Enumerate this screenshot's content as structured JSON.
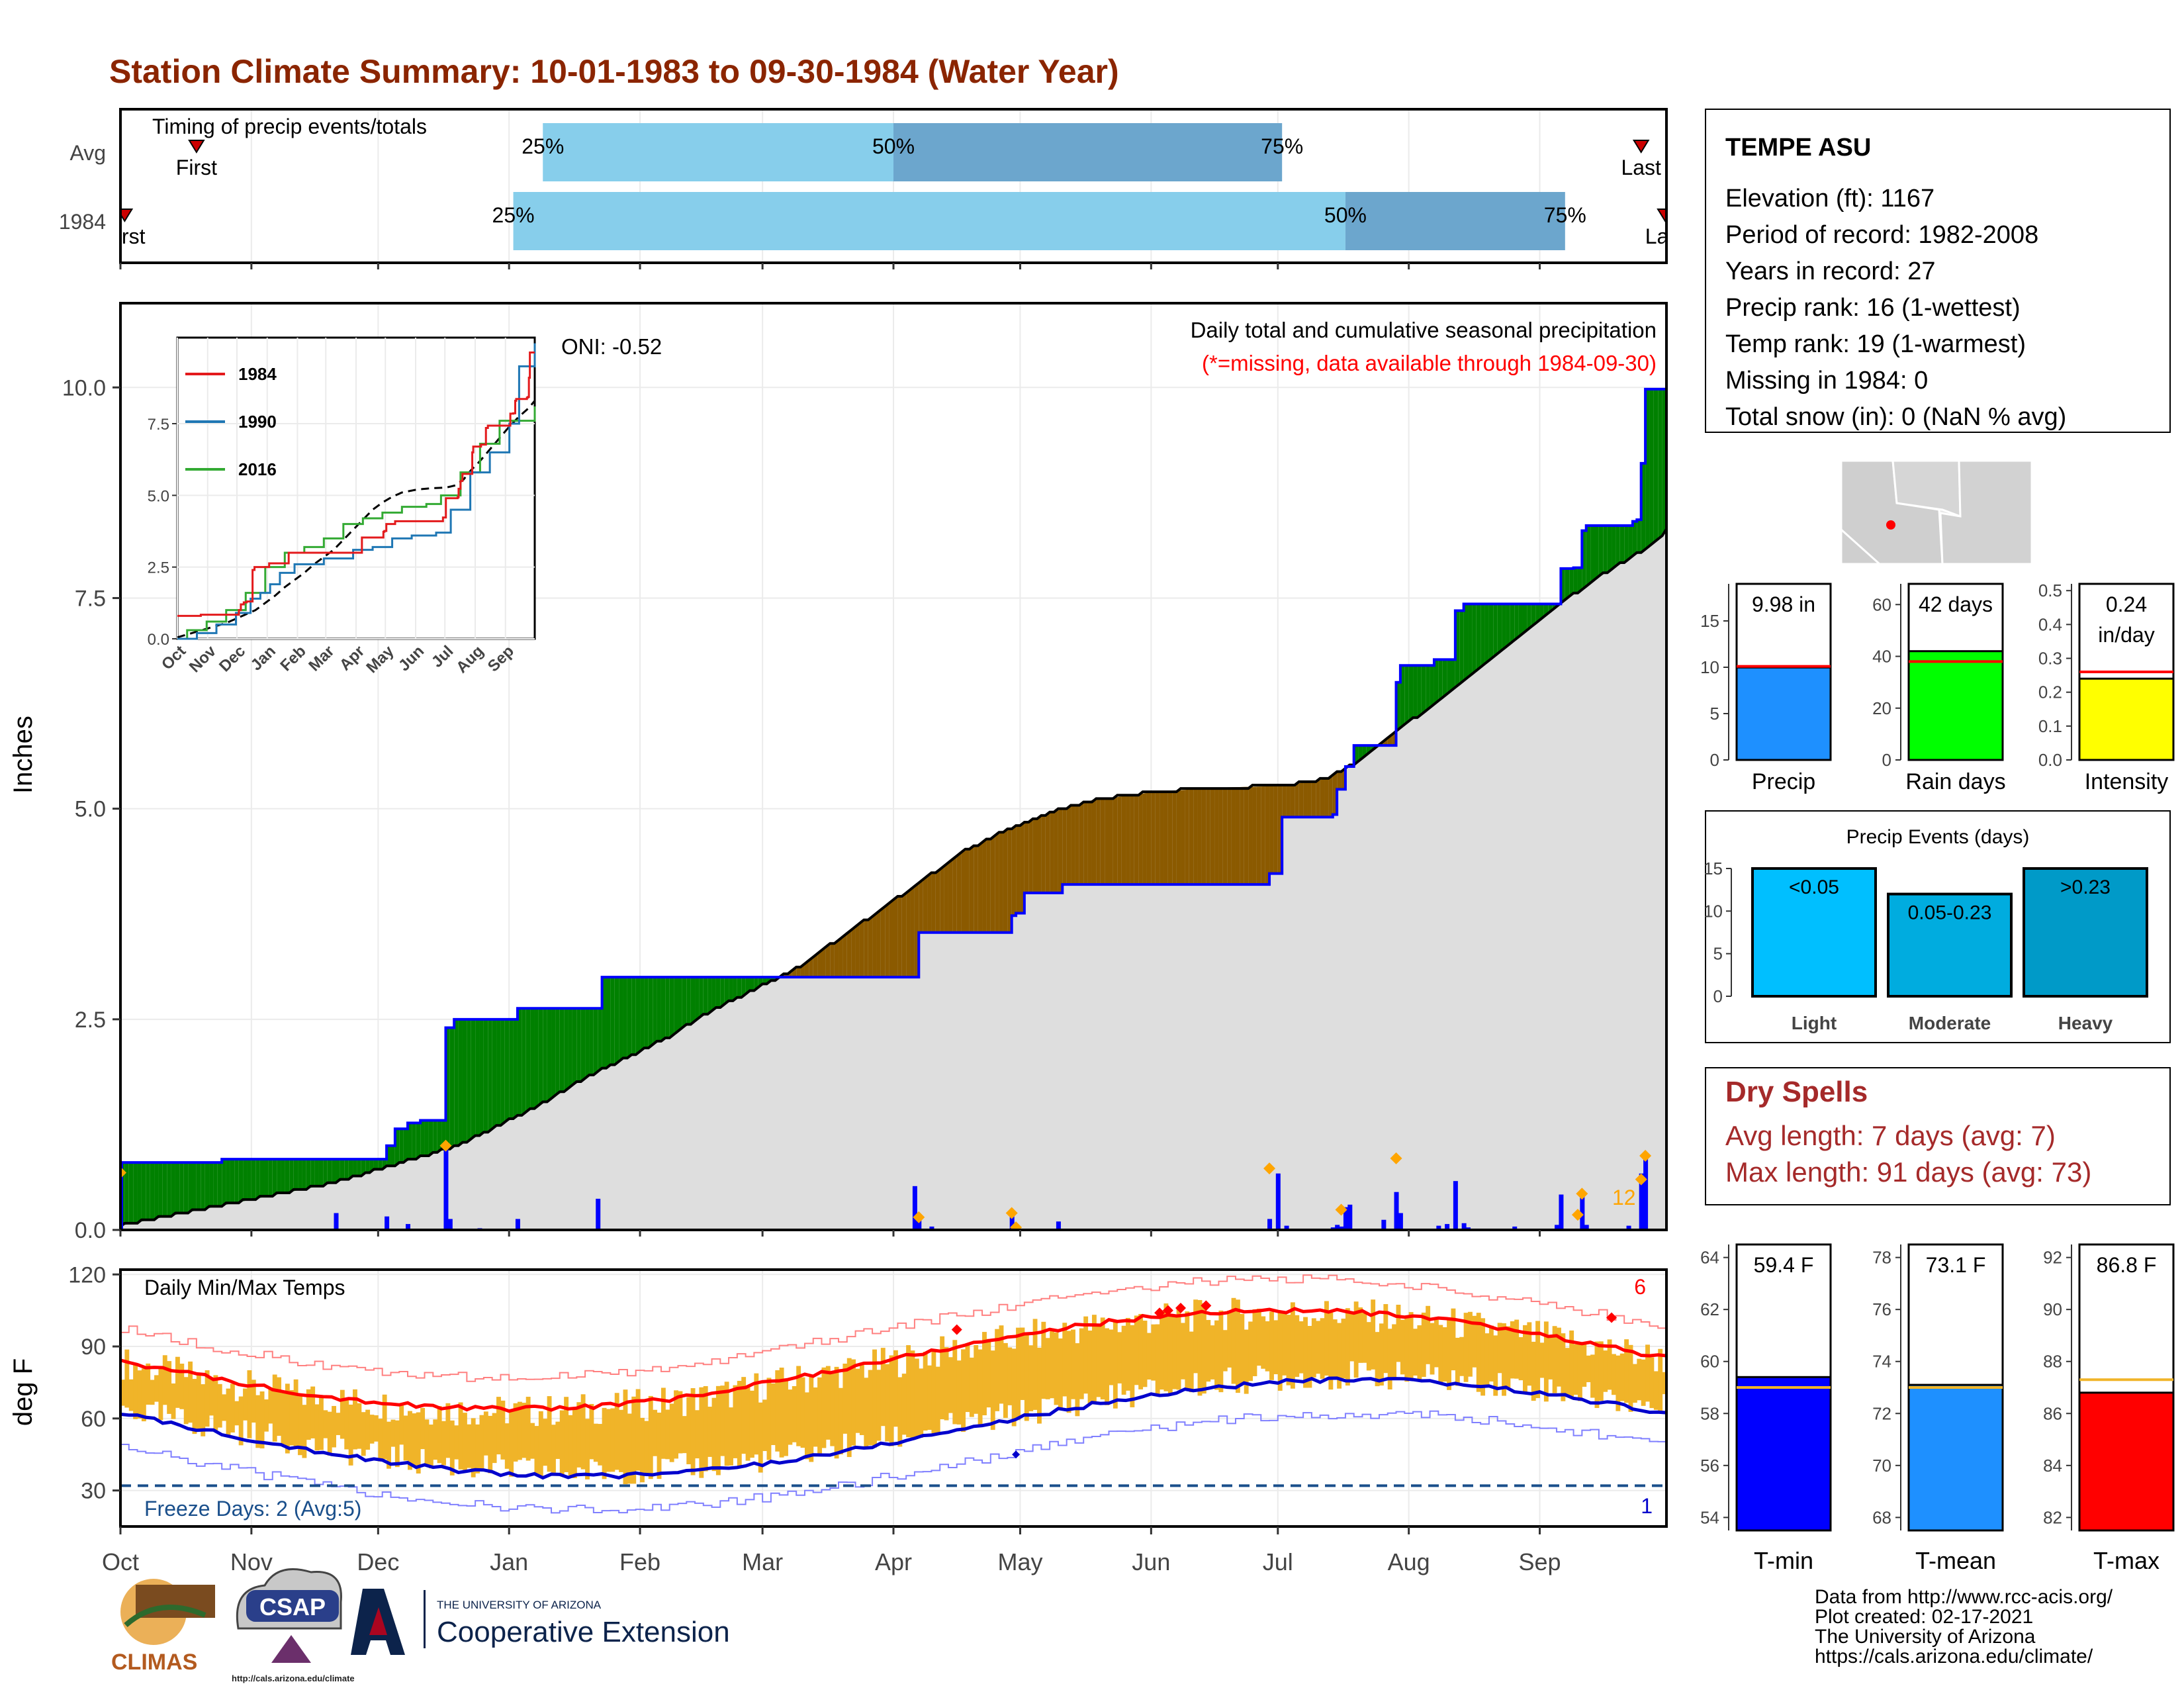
{
  "title": "Station Climate Summary: 10-01-1983 to 09-30-1984 (Water Year)",
  "months": [
    "Oct",
    "Nov",
    "Dec",
    "Jan",
    "Feb",
    "Mar",
    "Apr",
    "May",
    "Jun",
    "Jul",
    "Aug",
    "Sep"
  ],
  "timing": {
    "label": "Timing of precip events/totals",
    "rows": [
      {
        "name": "Avg",
        "first_day": 18,
        "q25": 100,
        "q50": 183,
        "q75": 275,
        "last_day": 360,
        "first_label": "First",
        "last_label": "Last"
      },
      {
        "name": "1984",
        "first_day": 1,
        "q25": 93,
        "q50": 290,
        "q75": 342,
        "last_day": 368,
        "first_label": "First",
        "last_label": "Last"
      }
    ],
    "pct_labels": [
      "25%",
      "50%",
      "75%"
    ]
  },
  "precip": {
    "ylabel": "Inches",
    "yticks": [
      "0.0",
      "2.5",
      "5.0",
      "7.5",
      "10.0"
    ],
    "title_line1": "Daily total and cumulative seasonal precipitation",
    "title_line2": "(*=missing, data available through 1984-09-30)",
    "oni": "ONI: -0.52",
    "count_label": "12",
    "ylim": [
      0,
      11
    ],
    "cumulative_1984": [
      [
        0,
        0.8
      ],
      [
        23,
        0.8
      ],
      [
        24,
        0.84
      ],
      [
        62,
        0.84
      ],
      [
        63,
        1.0
      ],
      [
        65,
        1.2
      ],
      [
        68,
        1.27
      ],
      [
        70,
        1.27
      ],
      [
        71,
        1.3
      ],
      [
        76,
        1.3
      ],
      [
        77,
        2.4
      ],
      [
        79,
        2.5
      ],
      [
        93,
        2.5
      ],
      [
        94,
        2.63
      ],
      [
        113,
        2.63
      ],
      [
        114,
        3.0
      ],
      [
        188,
        3.0
      ],
      [
        189,
        3.53
      ],
      [
        210,
        3.53
      ],
      [
        211,
        3.73
      ],
      [
        212,
        3.76
      ],
      [
        214,
        4.0
      ],
      [
        222,
        4.0
      ],
      [
        223,
        4.1
      ],
      [
        271,
        4.1
      ],
      [
        272,
        4.23
      ],
      [
        275,
        4.9
      ],
      [
        287,
        4.93
      ],
      [
        288,
        5.23
      ],
      [
        289,
        5.23
      ],
      [
        290,
        5.5
      ],
      [
        292,
        5.75
      ],
      [
        301,
        5.75
      ],
      [
        302,
        6.5
      ],
      [
        303,
        6.7
      ],
      [
        310,
        6.7
      ],
      [
        311,
        6.77
      ],
      [
        315,
        6.77
      ],
      [
        316,
        7.35
      ],
      [
        318,
        7.43
      ],
      [
        340,
        7.43
      ],
      [
        341,
        7.85
      ],
      [
        344,
        7.86
      ],
      [
        345,
        7.86
      ],
      [
        346,
        8.3
      ],
      [
        347,
        8.36
      ],
      [
        357,
        8.36
      ],
      [
        358,
        8.41
      ],
      [
        359,
        8.43
      ],
      [
        360,
        9.1
      ],
      [
        361,
        9.98
      ],
      [
        366,
        9.98
      ]
    ],
    "avg_curve": [
      [
        0,
        0.05
      ],
      [
        10,
        0.15
      ],
      [
        20,
        0.25
      ],
      [
        30,
        0.35
      ],
      [
        40,
        0.45
      ],
      [
        50,
        0.55
      ],
      [
        60,
        0.7
      ],
      [
        70,
        0.85
      ],
      [
        80,
        1.0
      ],
      [
        90,
        1.25
      ],
      [
        100,
        1.5
      ],
      [
        110,
        1.8
      ],
      [
        120,
        2.05
      ],
      [
        130,
        2.3
      ],
      [
        140,
        2.6
      ],
      [
        150,
        2.85
      ],
      [
        160,
        3.1
      ],
      [
        170,
        3.45
      ],
      [
        180,
        3.8
      ],
      [
        190,
        4.15
      ],
      [
        200,
        4.5
      ],
      [
        210,
        4.75
      ],
      [
        220,
        4.95
      ],
      [
        230,
        5.1
      ],
      [
        245,
        5.2
      ],
      [
        260,
        5.25
      ],
      [
        275,
        5.27
      ],
      [
        285,
        5.35
      ],
      [
        293,
        5.55
      ],
      [
        300,
        5.85
      ],
      [
        310,
        6.2
      ],
      [
        320,
        6.6
      ],
      [
        330,
        7.0
      ],
      [
        340,
        7.4
      ],
      [
        350,
        7.75
      ],
      [
        360,
        8.05
      ],
      [
        366,
        8.3
      ]
    ],
    "daily": [
      [
        0,
        0.8
      ],
      [
        51,
        0.2
      ],
      [
        63,
        0.16
      ],
      [
        68,
        0.07
      ],
      [
        77,
        1.0
      ],
      [
        78,
        0.13
      ],
      [
        85,
        0.02
      ],
      [
        94,
        0.13
      ],
      [
        113,
        0.37
      ],
      [
        188,
        0.52
      ],
      [
        189,
        0.15
      ],
      [
        192,
        0.04
      ],
      [
        211,
        0.2
      ],
      [
        212,
        0.03
      ],
      [
        222,
        0.1
      ],
      [
        230,
        0.01
      ],
      [
        272,
        0.13
      ],
      [
        274,
        0.67
      ],
      [
        276,
        0.05
      ],
      [
        287,
        0.03
      ],
      [
        288,
        0.06
      ],
      [
        289,
        0.04
      ],
      [
        290,
        0.27
      ],
      [
        291,
        0.3
      ],
      [
        299,
        0.12
      ],
      [
        302,
        0.45
      ],
      [
        303,
        0.2
      ],
      [
        312,
        0.05
      ],
      [
        314,
        0.07
      ],
      [
        316,
        0.58
      ],
      [
        318,
        0.08
      ],
      [
        319,
        0.03
      ],
      [
        330,
        0.04
      ],
      [
        340,
        0.06
      ],
      [
        341,
        0.42
      ],
      [
        344,
        0.01
      ],
      [
        346,
        0.44
      ],
      [
        347,
        0.06
      ],
      [
        357,
        0.05
      ],
      [
        360,
        0.67
      ],
      [
        361,
        0.88
      ]
    ],
    "inset": {
      "series": [
        {
          "name": "1984"
        },
        {
          "name": "1990"
        },
        {
          "name": "2016"
        }
      ],
      "yticks": [
        "0.0",
        "2.5",
        "5.0",
        "7.5"
      ],
      "xticks": [
        "Oct",
        "Nov",
        "Dec",
        "Jan",
        "Feb",
        "Mar",
        "Apr",
        "May",
        "Jun",
        "Jul",
        "Aug",
        "Sep"
      ],
      "ylim": [
        0,
        10.5
      ]
    }
  },
  "temps": {
    "ylabel": "deg F",
    "title": "Daily Min/Max Temps",
    "yticks": [
      "30",
      "60",
      "90",
      "120"
    ],
    "ylim": [
      15,
      122
    ],
    "freeze_label": "Freeze Days: 2 (Avg:5)",
    "freeze_line": 32,
    "record_hi_count": "6",
    "record_lo_count": "1"
  },
  "station": {
    "name": "TEMPE ASU",
    "lines": [
      "Elevation (ft): 1167",
      "Period of record: 1982-2008",
      "Years in record: 27",
      "Precip rank: 16 (1-wettest)",
      "Temp rank: 19 (1-warmest)",
      "Missing in 1984: 0",
      "Total snow (in): 0 (NaN % avg)"
    ]
  },
  "mini_bars": [
    {
      "label": "Precip",
      "value": 9.98,
      "avg": 10.1,
      "text": [
        "9.98 in"
      ],
      "ylim": [
        0,
        19
      ],
      "yticks": [
        "0",
        "5",
        "10",
        "15"
      ],
      "tickvals": [
        0,
        5,
        10,
        15
      ],
      "color": "#1e90ff"
    },
    {
      "label": "Rain days",
      "value": 42,
      "avg": 38,
      "text": [
        "42 days"
      ],
      "ylim": [
        0,
        68
      ],
      "yticks": [
        "0",
        "20",
        "40",
        "60"
      ],
      "tickvals": [
        0,
        20,
        40,
        60
      ],
      "color": "#00ff00"
    },
    {
      "label": "Intensity",
      "value": 0.24,
      "avg": 0.26,
      "text": [
        "0.24",
        "in/day"
      ],
      "ylim": [
        0,
        0.52
      ],
      "yticks": [
        "0.0",
        "0.1",
        "0.2",
        "0.3",
        "0.4",
        "0.5"
      ],
      "tickvals": [
        0,
        0.1,
        0.2,
        0.3,
        0.4,
        0.5
      ],
      "color": "#ffff00"
    }
  ],
  "events": {
    "title": "Precip Events (days)",
    "yticks": [
      "0",
      "5",
      "10",
      "15"
    ],
    "bars": [
      {
        "category": "Light",
        "label": "<0.05",
        "value": 15,
        "color": "#00bfff"
      },
      {
        "category": "Moderate",
        "label": "0.05-0.23",
        "value": 12,
        "color": "#00acdf"
      },
      {
        "category": "Heavy",
        "label": ">0.23",
        "value": 15,
        "color": "#009ac8"
      }
    ]
  },
  "dry_spells": {
    "title": "Dry Spells",
    "lines": [
      "Avg length: 7 days (avg: 7)",
      "Max length: 91 days (avg: 73)"
    ]
  },
  "temp_bars": [
    {
      "label": "T-min",
      "value": 59.4,
      "avg": 59.0,
      "text": "59.4 F",
      "ylim": [
        53.5,
        64.5
      ],
      "ticks": [
        54,
        56,
        58,
        60,
        62,
        64
      ],
      "color": "#0000ff"
    },
    {
      "label": "T-mean",
      "value": 73.1,
      "avg": 73.0,
      "text": "73.1 F",
      "ylim": [
        67.5,
        78.5
      ],
      "ticks": [
        68,
        70,
        72,
        74,
        76,
        78
      ],
      "color": "#1e90ff"
    },
    {
      "label": "T-max",
      "value": 86.8,
      "avg": 87.3,
      "text": "86.8 F",
      "ylim": [
        81.5,
        92.5
      ],
      "ticks": [
        82,
        84,
        86,
        88,
        90,
        92
      ],
      "color": "#ff0000"
    }
  ],
  "footer": [
    "Data from http://www.rcc-acis.org/",
    "Plot created: 02-17-2021",
    "The University of Arizona",
    "https://cals.arizona.edu/climate/"
  ],
  "logos": {
    "climas": "CLIMAS",
    "csap": "CSAP",
    "csap_url": "http://cals.arizona.edu/climate",
    "ua_small": "THE UNIVERSITY OF ARIZONA",
    "ua_big": "Cooperative Extension"
  },
  "chart_data": [
    {
      "type": "bar",
      "title": "Timing of precip events/totals",
      "categories": [
        "Avg",
        "1984"
      ],
      "series": [
        {
          "name": "25%",
          "values": [
            100,
            93
          ]
        },
        {
          "name": "50%",
          "values": [
            183,
            290
          ]
        },
        {
          "name": "75%",
          "values": [
            275,
            342
          ]
        }
      ]
    },
    {
      "type": "area",
      "title": "Daily total and cumulative seasonal precipitation",
      "ylabel": "Inches",
      "ylim": [
        0,
        11
      ],
      "series": [
        {
          "name": "1984",
          "values": [
            0.8,
            0.84,
            1.3,
            2.5,
            2.63,
            3.0,
            3.0,
            3.73,
            4.1,
            4.1,
            6.7,
            9.98
          ]
        }
      ],
      "categories": [
        "Oct",
        "Nov",
        "Dec",
        "Jan",
        "Feb",
        "Mar",
        "Apr",
        "May",
        "Jun",
        "Jul",
        "Aug",
        "Sep"
      ]
    },
    {
      "type": "line",
      "title": "Daily Min/Max Temps",
      "ylabel": "deg F",
      "ylim": [
        15,
        122
      ]
    },
    {
      "type": "bar",
      "categories": [
        "Precip",
        "Rain days",
        "Intensity"
      ],
      "values": [
        9.98,
        42,
        0.24
      ]
    },
    {
      "type": "bar",
      "title": "Precip Events (days)",
      "categories": [
        "Light",
        "Moderate",
        "Heavy"
      ],
      "values": [
        15,
        12,
        15
      ]
    },
    {
      "type": "bar",
      "categories": [
        "T-min",
        "T-mean",
        "T-max"
      ],
      "values": [
        59.4,
        73.1,
        86.8
      ]
    }
  ]
}
